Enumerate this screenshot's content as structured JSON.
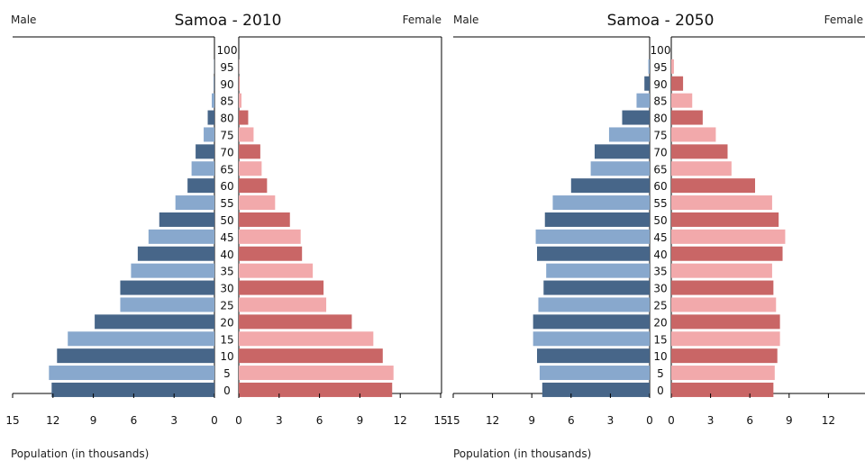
{
  "colors": {
    "male_dark": "#476689",
    "male_light": "#88a8cd",
    "female_dark": "#c96666",
    "female_light": "#f2a9ab"
  },
  "chart_data": [
    {
      "type": "bar",
      "title": "Samoa - 2010",
      "left_label": "Male",
      "right_label": "Female",
      "xlabel": "Population (in thousands)",
      "xlim": [
        0,
        15
      ],
      "xticks": [
        15,
        12,
        9,
        6,
        3,
        0
      ],
      "categories": [
        "0",
        "5",
        "10",
        "15",
        "20",
        "25",
        "30",
        "35",
        "40",
        "45",
        "50",
        "55",
        "60",
        "65",
        "70",
        "75",
        "80",
        "85",
        "90",
        "95",
        "100"
      ],
      "series": [
        {
          "name": "Male",
          "values": [
            12.1,
            12.3,
            11.7,
            10.9,
            8.9,
            7.0,
            7.0,
            6.2,
            5.7,
            4.9,
            4.1,
            2.9,
            2.0,
            1.7,
            1.4,
            0.8,
            0.5,
            0.2,
            0.05,
            0.02,
            0.0
          ]
        },
        {
          "name": "Female",
          "values": [
            11.4,
            11.5,
            10.7,
            10.0,
            8.4,
            6.5,
            6.3,
            5.5,
            4.7,
            4.6,
            3.8,
            2.7,
            2.1,
            1.7,
            1.6,
            1.1,
            0.7,
            0.2,
            0.05,
            0.02,
            0.0
          ]
        }
      ]
    },
    {
      "type": "bar",
      "title": "Samoa - 2050",
      "left_label": "Male",
      "right_label": "Female",
      "xlabel": "Population (in thousands)",
      "xlim": [
        0,
        15
      ],
      "xticks": [
        15,
        12,
        9,
        6,
        3,
        0
      ],
      "categories": [
        "0",
        "5",
        "10",
        "15",
        "20",
        "25",
        "30",
        "35",
        "40",
        "45",
        "50",
        "55",
        "60",
        "65",
        "70",
        "75",
        "80",
        "85",
        "90",
        "95",
        "100"
      ],
      "series": [
        {
          "name": "Male",
          "values": [
            8.2,
            8.4,
            8.6,
            8.9,
            8.9,
            8.5,
            8.1,
            7.9,
            8.6,
            8.7,
            8.0,
            7.4,
            6.0,
            4.5,
            4.2,
            3.1,
            2.1,
            1.0,
            0.4,
            0.1,
            0.0
          ]
        },
        {
          "name": "Female",
          "values": [
            7.8,
            7.9,
            8.1,
            8.3,
            8.3,
            8.0,
            7.8,
            7.7,
            8.5,
            8.7,
            8.2,
            7.7,
            6.4,
            4.6,
            4.3,
            3.4,
            2.4,
            1.6,
            0.9,
            0.2,
            0.0
          ]
        }
      ]
    }
  ]
}
